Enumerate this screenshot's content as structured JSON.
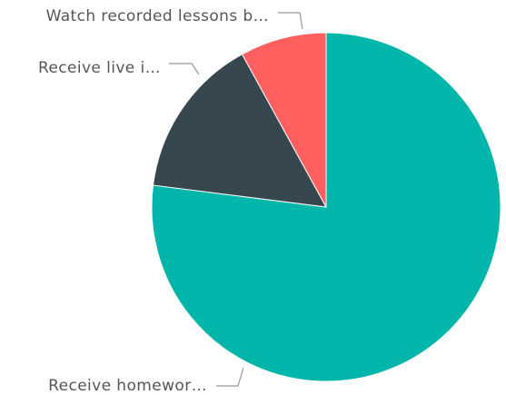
{
  "chart_data": {
    "type": "pie",
    "slices": [
      {
        "label": "Receive homewor…",
        "value": 77,
        "color": "#00b5a9"
      },
      {
        "label": "Receive live i…",
        "value": 15,
        "color": "#37474f"
      },
      {
        "label": "Watch recorded lessons b…",
        "value": 8,
        "color": "#ff5f5f"
      }
    ],
    "start": "12 o'clock",
    "direction": "clockwise",
    "legend": "none",
    "labels": "outside with leader lines"
  }
}
